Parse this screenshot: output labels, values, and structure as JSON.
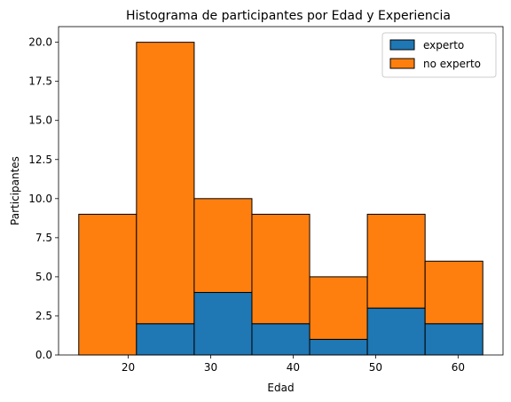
{
  "chart_data": {
    "type": "bar",
    "stacked": true,
    "title": "Histograma de participantes por Edad y Experiencia",
    "xlabel": "Edad",
    "ylabel": "Participantes",
    "bin_edges": [
      14,
      21,
      28,
      35,
      42,
      49,
      56,
      63
    ],
    "series": [
      {
        "name": "experto",
        "values": [
          0,
          2,
          4,
          2,
          1,
          3,
          2
        ],
        "color": "#1f77b4"
      },
      {
        "name": "no experto",
        "values": [
          9,
          18,
          6,
          7,
          4,
          6,
          4
        ],
        "color": "#ff7f0e"
      }
    ],
    "xlim": [
      11.55,
      65.45
    ],
    "ylim": [
      0,
      21
    ],
    "xticks": [
      20,
      30,
      40,
      50,
      60
    ],
    "yticks": [
      0.0,
      2.5,
      5.0,
      7.5,
      10.0,
      12.5,
      15.0,
      17.5,
      20.0
    ],
    "edge_color": "#000000",
    "grid": false,
    "legend_position": "upper-right"
  }
}
